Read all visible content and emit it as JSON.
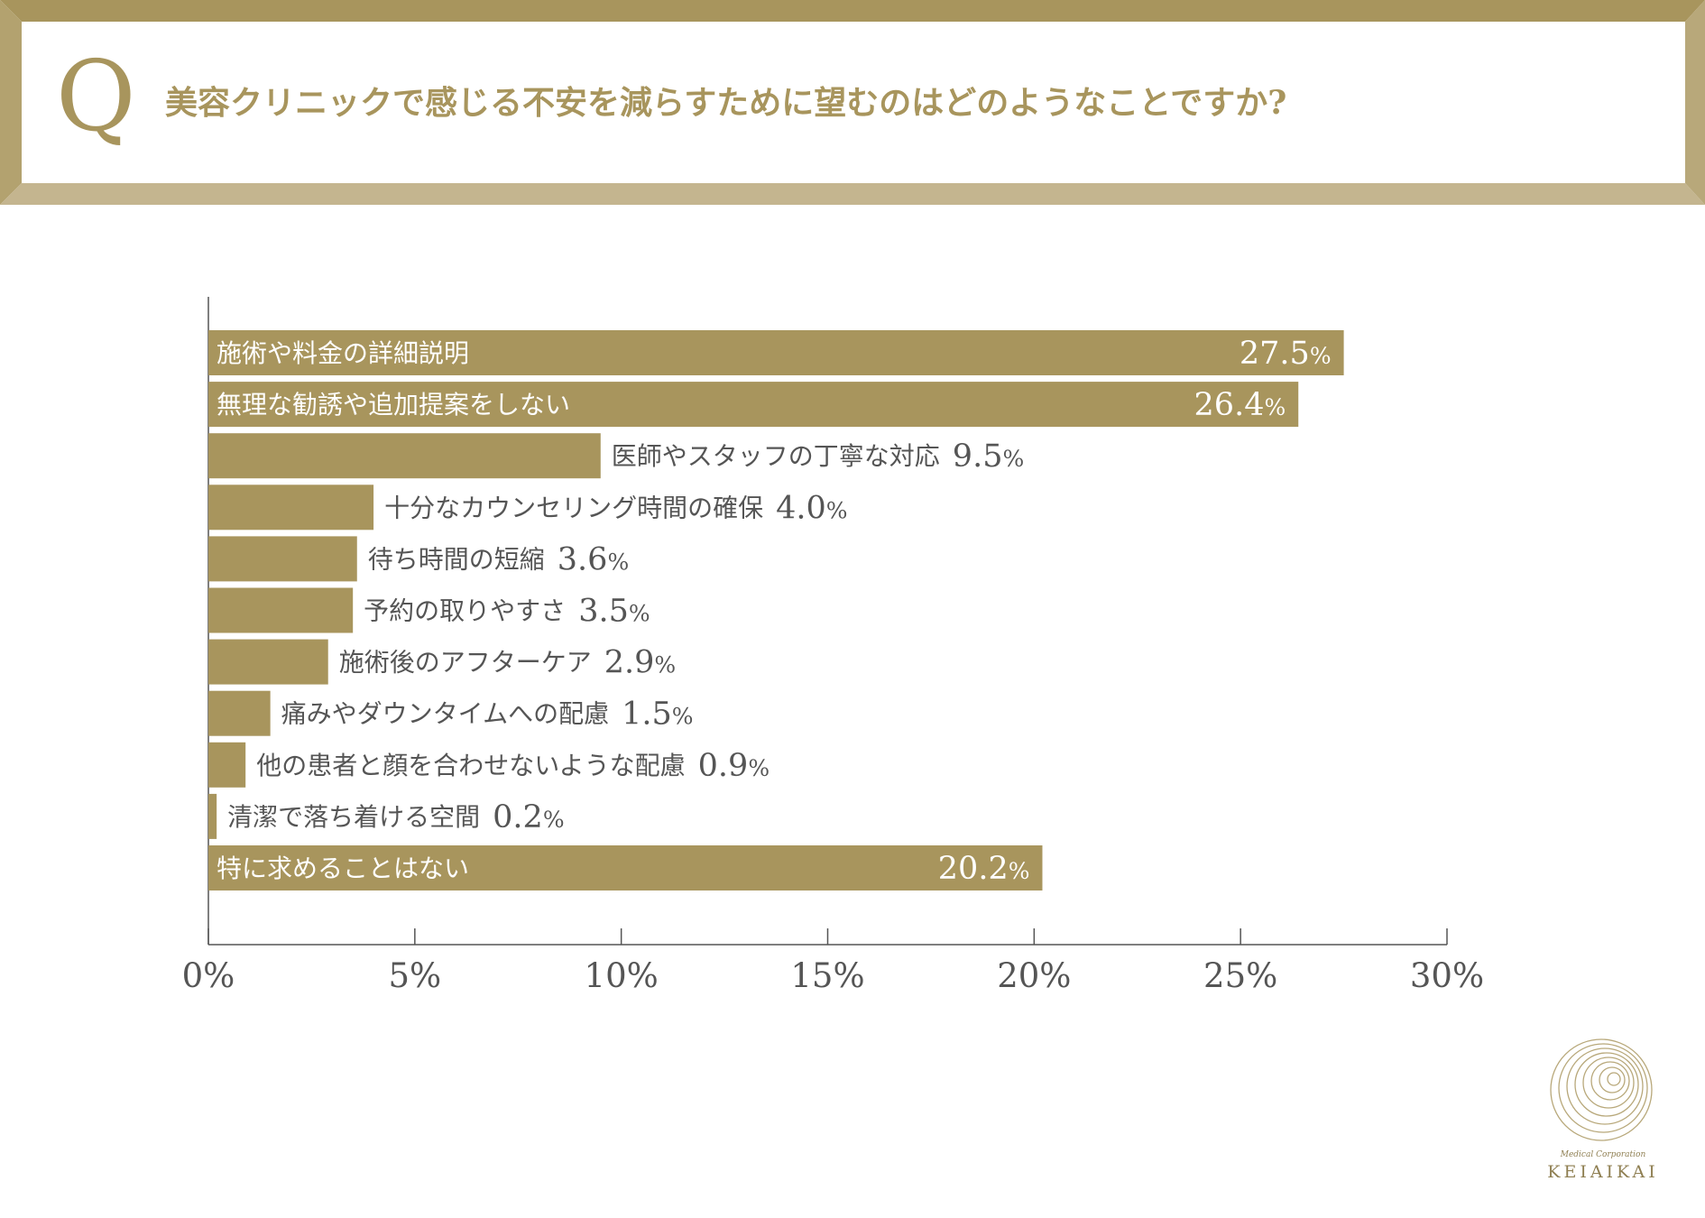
{
  "question": {
    "mark": "Q",
    "text": "美容クリニックで感じる不安を減らすために望むのはどのようなことですか?"
  },
  "colors": {
    "accent": "#a8955d",
    "accent_light": "#c4b58f",
    "text_dark": "#555555",
    "axis": "#555555"
  },
  "chart_data": {
    "type": "bar",
    "orientation": "horizontal",
    "title": "美容クリニックで感じる不安を減らすために望むのはどのようなことですか?",
    "categories": [
      "施術や料金の詳細説明",
      "無理な勧誘や追加提案をしない",
      "医師やスタッフの丁寧な対応",
      "十分なカウンセリング時間の確保",
      "待ち時間の短縮",
      "予約の取りやすさ",
      "施術後のアフターケア",
      "痛みやダウンタイムへの配慮",
      "他の患者と顔を合わせないような配慮",
      "清潔で落ち着ける空間",
      "特に求めることはない"
    ],
    "values": [
      27.5,
      26.4,
      9.5,
      4.0,
      3.6,
      3.5,
      2.9,
      1.5,
      0.9,
      0.2,
      20.2
    ],
    "value_labels": [
      "27.5",
      "26.4",
      "9.5",
      "4.0",
      "3.6",
      "3.5",
      "2.9",
      "1.5",
      "0.9",
      "0.2",
      "20.2"
    ],
    "unit": "%",
    "xlim": [
      0,
      30
    ],
    "xticks": [
      "0%",
      "5%",
      "10%",
      "15%",
      "20%",
      "25%",
      "30%"
    ],
    "xlabel": "",
    "ylabel": ""
  },
  "logo": {
    "subtitle": "Medical Corporation",
    "name": "KEIAIKAI"
  }
}
